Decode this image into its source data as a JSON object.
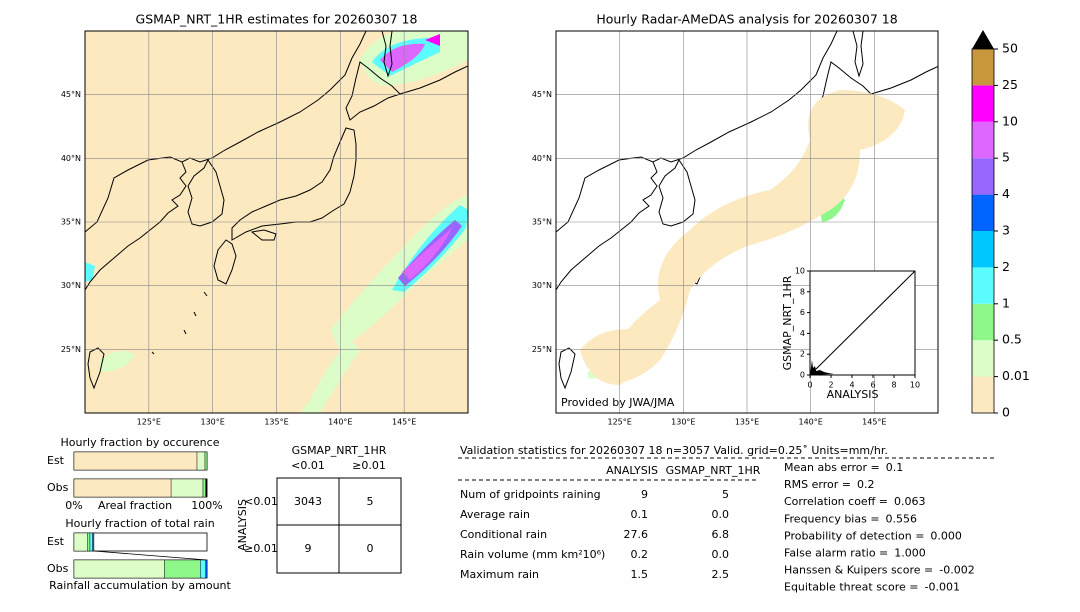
{
  "maps": [
    {
      "title": "GSMAP_NRT_1HR estimates for 20260307 18",
      "background": "#fde9c0"
    },
    {
      "title": "Hourly Radar-AMeDAS analysis for 20260307 18",
      "background": "#ffffff",
      "credit": "Provided by JWA/JMA"
    }
  ],
  "map_axes": {
    "xlim": [
      120,
      150
    ],
    "ylim": [
      20,
      50
    ],
    "xticks": [
      {
        "value": 125,
        "label": "125°E"
      },
      {
        "value": 130,
        "label": "130°E"
      },
      {
        "value": 135,
        "label": "135°E"
      },
      {
        "value": 140,
        "label": "140°E"
      },
      {
        "value": 145,
        "label": "145°E"
      }
    ],
    "yticks": [
      {
        "value": 25,
        "label": "25°N"
      },
      {
        "value": 30,
        "label": "30°N"
      },
      {
        "value": 35,
        "label": "35°N"
      },
      {
        "value": 40,
        "label": "40°N"
      },
      {
        "value": 45,
        "label": "45°N"
      }
    ],
    "grid": true
  },
  "colorbar": {
    "levels": [
      0,
      0.01,
      0.5,
      1,
      2,
      3,
      4,
      5,
      10,
      25,
      50
    ],
    "colors": [
      "#fde9c0",
      "#dcfcc8",
      "#8ef78a",
      "#5cfcfc",
      "#00c8ff",
      "#0064ff",
      "#9966ff",
      "#dd66ff",
      "#ff00ff",
      "#c8963c"
    ],
    "extend_color": "#000000"
  },
  "scatter": {
    "xlabel": "ANALYSIS",
    "ylabel": "GSMAP_NRT_1HR",
    "xlim": [
      0,
      10
    ],
    "ylim": [
      0,
      10
    ],
    "xticks": [
      0,
      2,
      4,
      6,
      8,
      10
    ],
    "yticks": [
      0,
      2,
      4,
      6,
      8,
      10
    ]
  },
  "fraction_occurrence": {
    "title": "Hourly fraction by occurence",
    "xlabel": "Areal fraction",
    "xlim": [
      0,
      100
    ],
    "xticks": [
      {
        "value": 0,
        "label": "0%"
      },
      {
        "value": 100,
        "label": "100%"
      }
    ],
    "rows": [
      {
        "name": "Est",
        "segments": [
          {
            "color": "#fde9c0",
            "value": 92.5
          },
          {
            "color": "#dcfcc8",
            "value": 6
          },
          {
            "color": "#8ef78a",
            "value": 1.5
          }
        ]
      },
      {
        "name": "Obs",
        "segments": [
          {
            "color": "#fde9c0",
            "value": 73
          },
          {
            "color": "#dcfcc8",
            "value": 24
          },
          {
            "color": "#8ef78a",
            "value": 2
          },
          {
            "color": "#000000",
            "value": 1
          }
        ]
      }
    ]
  },
  "fraction_total": {
    "title": "Hourly fraction of total rain",
    "xlabel": "Rainfall accumulation by amount",
    "xlim": [
      0,
      100
    ],
    "rows": [
      {
        "name": "Est",
        "segments": [
          {
            "color": "#dcfcc8",
            "value": 10
          },
          {
            "color": "#8ef78a",
            "value": 2
          },
          {
            "color": "#5cfcfc",
            "value": 2
          },
          {
            "color": "#0064ff",
            "value": 1
          }
        ]
      },
      {
        "name": "Obs",
        "segments": [
          {
            "color": "#dcfcc8",
            "value": 68
          },
          {
            "color": "#8ef78a",
            "value": 27
          },
          {
            "color": "#5cfcfc",
            "value": 4
          },
          {
            "color": "#0064ff",
            "value": 1
          }
        ]
      }
    ]
  },
  "contingency": {
    "title": "GSMAP_NRT_1HR",
    "columns": [
      "<0.01",
      "≥0.01"
    ],
    "row_title": "ANALYSIS",
    "rows": [
      "<0.01",
      "≥0.01"
    ],
    "cells": [
      [
        3043,
        5
      ],
      [
        9,
        0
      ]
    ]
  },
  "validation": {
    "header": "Validation statistics for 20260307 18  n=3057 Valid. grid=0.25˚ Units=mm/hr.",
    "columns": [
      "ANALYSIS",
      "GSMAP_NRT_1HR"
    ],
    "rows": [
      {
        "label": "Num of gridpoints raining",
        "values": [
          "9",
          "5"
        ]
      },
      {
        "label": "Average rain",
        "values": [
          "0.1",
          "0.0"
        ]
      },
      {
        "label": "Conditional rain",
        "values": [
          "27.6",
          "6.8"
        ]
      },
      {
        "label": "Rain volume (mm km²10⁶)",
        "values": [
          "0.2",
          "0.0"
        ]
      },
      {
        "label": "Maximum rain",
        "values": [
          "1.5",
          "2.5"
        ]
      }
    ],
    "scores": [
      {
        "label": "Mean abs error =",
        "value": "0.1"
      },
      {
        "label": "RMS error =",
        "value": "0.2"
      },
      {
        "label": "Correlation coeff =",
        "value": "0.063"
      },
      {
        "label": "Frequency bias =",
        "value": "0.556"
      },
      {
        "label": "Probability of detection =",
        "value": "0.000"
      },
      {
        "label": "False alarm ratio =",
        "value": "1.000"
      },
      {
        "label": "Hanssen & Kuipers score =",
        "value": "-0.002"
      },
      {
        "label": "Equitable threat score =",
        "value": "-0.001"
      }
    ]
  }
}
